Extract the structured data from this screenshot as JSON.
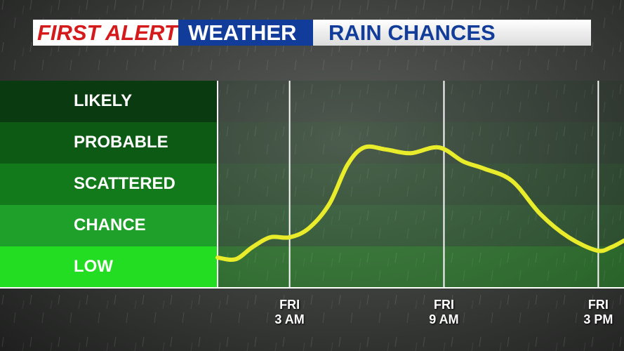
{
  "chart_data": {
    "type": "line",
    "brand": "FIRST ALERT",
    "section": "WEATHER",
    "title": "RAIN CHANCES",
    "x": [
      0.2,
      0.9,
      1.55,
      2.25,
      3,
      3.75,
      4.55,
      5.25,
      5.9,
      6.75,
      7.7,
      8.8,
      9.75,
      10.55,
      11.65,
      12.75,
      13.85,
      14.95,
      15.5,
      16
    ],
    "series": [
      {
        "color": "#e8ec2a",
        "values": [
          0.73,
          0.69,
          0.98,
          1.22,
          1.22,
          1.44,
          2.03,
          2.97,
          3.39,
          3.34,
          3.25,
          3.39,
          3.05,
          2.88,
          2.58,
          1.78,
          1.22,
          0.9,
          0.98,
          1.14
        ]
      }
    ],
    "xlim": [
      0.2,
      16
    ],
    "xticks": [
      {
        "value": 3,
        "label": "FRI\n3 AM"
      },
      {
        "value": 9,
        "label": "FRI\n9 AM"
      },
      {
        "value": 15,
        "label": "FRI\n3 PM"
      }
    ],
    "ylim": [
      0,
      5
    ],
    "yticks": [
      {
        "value": 0.5,
        "label": "LOW"
      },
      {
        "value": 1.5,
        "label": "CHANCE"
      },
      {
        "value": 2.5,
        "label": "SCATTERED"
      },
      {
        "value": 3.5,
        "label": "PROBABLE"
      },
      {
        "value": 4.5,
        "label": "LIKELY"
      }
    ],
    "band_colors": [
      "#22dd22",
      "#1ea02a",
      "#137a1c",
      "#0d5a14",
      "#0a3a0f"
    ]
  }
}
